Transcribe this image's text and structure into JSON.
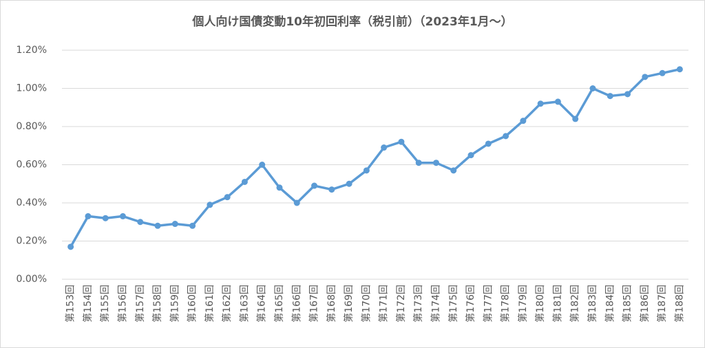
{
  "chart_data": {
    "type": "line",
    "title": "個人向け国債変動10年初回利率（税引前）（2023年1月～）",
    "categories": [
      "第153回",
      "第154回",
      "第155回",
      "第156回",
      "第157回",
      "第158回",
      "第159回",
      "第160回",
      "第161回",
      "第162回",
      "第163回",
      "第164回",
      "第165回",
      "第166回",
      "第167回",
      "第168回",
      "第169回",
      "第170回",
      "第171回",
      "第172回",
      "第173回",
      "第174回",
      "第175回",
      "第176回",
      "第177回",
      "第178回",
      "第179回",
      "第180回",
      "第181回",
      "第182回",
      "第183回",
      "第184回",
      "第185回",
      "第186回",
      "第187回",
      "第188回"
    ],
    "series": [
      {
        "color": "#5b9bd5",
        "values": [
          0.17,
          0.33,
          0.32,
          0.33,
          0.3,
          0.28,
          0.29,
          0.28,
          0.39,
          0.43,
          0.51,
          0.6,
          0.48,
          0.4,
          0.49,
          0.47,
          0.5,
          0.57,
          0.69,
          0.72,
          0.61,
          0.61,
          0.57,
          0.65,
          0.71,
          0.75,
          0.83,
          0.92,
          0.93,
          0.84,
          1.0,
          0.96,
          0.97,
          1.06,
          1.08,
          1.1
        ]
      }
    ],
    "ylim": [
      0,
      1.2
    ],
    "yticks": [
      {
        "value": 0,
        "label": "0.00%"
      },
      {
        "value": 0.2,
        "label": "0.20%"
      },
      {
        "value": 0.4,
        "label": "0.40%"
      },
      {
        "value": 0.6,
        "label": "0.60%"
      },
      {
        "value": 0.8,
        "label": "0.80%"
      },
      {
        "value": 1.0,
        "label": "1.00%"
      },
      {
        "value": 1.2,
        "label": "1.20%"
      }
    ],
    "grid": true
  }
}
